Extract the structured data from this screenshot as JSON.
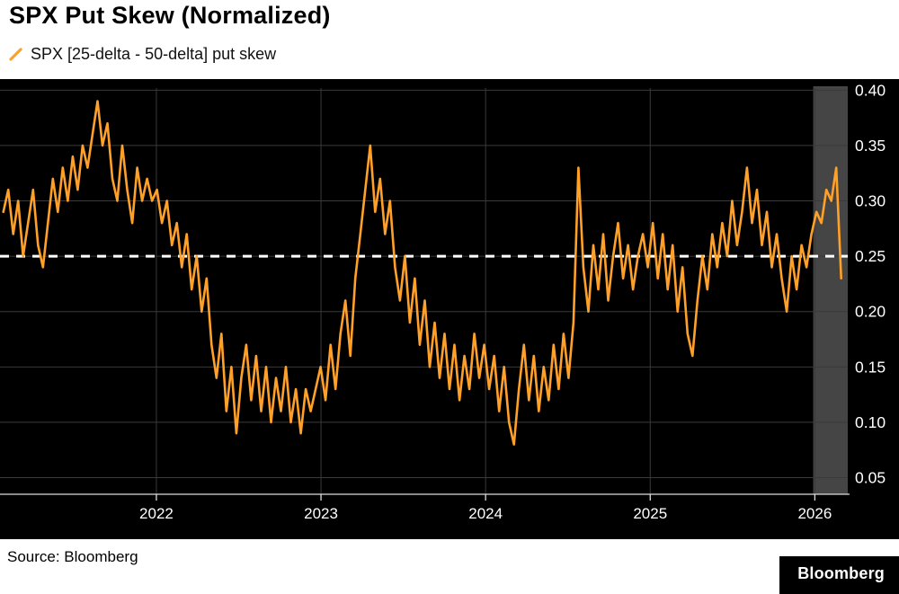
{
  "header": {
    "title": "SPX Put Skew (Normalized)",
    "legend_label": "SPX [25-delta - 50-delta] put skew"
  },
  "footer": {
    "source": "Source: Bloomberg",
    "brand": "Bloomberg"
  },
  "colors": {
    "series": "#FFA028",
    "chart_bg": "#000000",
    "grid": "#3a3a3a",
    "band": "#454545",
    "axis": "#dddddd",
    "reference": "#ffffff"
  },
  "chart_data": {
    "type": "line",
    "title": "SPX Put Skew (Normalized)",
    "xlabel": "",
    "ylabel": "",
    "x_ticks": [
      2022,
      2023,
      2024,
      2025,
      2026
    ],
    "y_ticks": [
      0.4,
      0.35,
      0.3,
      0.25,
      0.2,
      0.15,
      0.1,
      0.05
    ],
    "xlim": [
      2021.05,
      2026.2
    ],
    "ylim": [
      0.035,
      0.41
    ],
    "grid": true,
    "legend_position": "top-left",
    "reference_line": 0.25,
    "highlight_band": {
      "x_start": 2025.99,
      "x_end": 2026.2
    },
    "series": [
      {
        "name": "SPX [25-delta - 50-delta] put skew",
        "color": "#FFA028",
        "x_start": 2021.07,
        "x_step": 0.03012,
        "values": [
          0.29,
          0.31,
          0.27,
          0.3,
          0.25,
          0.28,
          0.31,
          0.26,
          0.24,
          0.28,
          0.32,
          0.29,
          0.33,
          0.3,
          0.34,
          0.31,
          0.35,
          0.33,
          0.36,
          0.39,
          0.35,
          0.37,
          0.32,
          0.3,
          0.35,
          0.31,
          0.28,
          0.33,
          0.3,
          0.32,
          0.3,
          0.31,
          0.28,
          0.3,
          0.26,
          0.28,
          0.24,
          0.27,
          0.22,
          0.25,
          0.2,
          0.23,
          0.17,
          0.14,
          0.18,
          0.11,
          0.15,
          0.09,
          0.14,
          0.17,
          0.12,
          0.16,
          0.11,
          0.15,
          0.1,
          0.14,
          0.11,
          0.15,
          0.1,
          0.13,
          0.09,
          0.13,
          0.11,
          0.13,
          0.15,
          0.12,
          0.17,
          0.13,
          0.18,
          0.21,
          0.16,
          0.23,
          0.27,
          0.31,
          0.35,
          0.29,
          0.32,
          0.27,
          0.3,
          0.24,
          0.21,
          0.25,
          0.19,
          0.23,
          0.17,
          0.21,
          0.15,
          0.19,
          0.14,
          0.18,
          0.13,
          0.17,
          0.12,
          0.16,
          0.13,
          0.18,
          0.14,
          0.17,
          0.13,
          0.16,
          0.11,
          0.15,
          0.1,
          0.08,
          0.13,
          0.17,
          0.12,
          0.16,
          0.11,
          0.15,
          0.12,
          0.17,
          0.13,
          0.18,
          0.14,
          0.19,
          0.33,
          0.24,
          0.2,
          0.26,
          0.22,
          0.27,
          0.21,
          0.25,
          0.28,
          0.23,
          0.26,
          0.22,
          0.25,
          0.27,
          0.24,
          0.28,
          0.23,
          0.27,
          0.22,
          0.26,
          0.2,
          0.24,
          0.18,
          0.16,
          0.21,
          0.25,
          0.22,
          0.27,
          0.24,
          0.28,
          0.25,
          0.3,
          0.26,
          0.29,
          0.33,
          0.28,
          0.31,
          0.26,
          0.29,
          0.24,
          0.27,
          0.23,
          0.2,
          0.25,
          0.22,
          0.26,
          0.24,
          0.27,
          0.29,
          0.28,
          0.31,
          0.3,
          0.33,
          0.23
        ]
      }
    ]
  }
}
